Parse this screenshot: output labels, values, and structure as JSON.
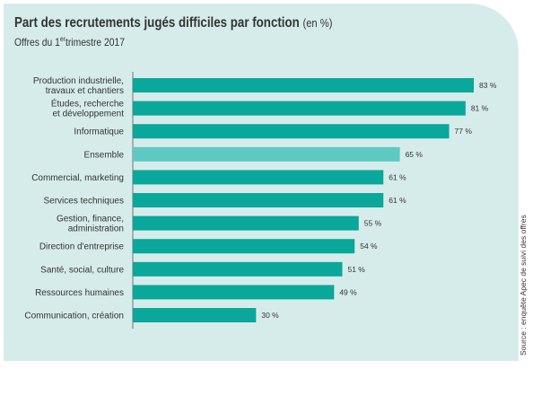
{
  "header": {
    "title": "Part des recrutements jugés difficiles par fonction",
    "title_unit": "(en %)",
    "subtitle_pre": "Offres du 1",
    "subtitle_sup": "er",
    "subtitle_post": "trimestre 2017"
  },
  "source": "Source : enquête Apec de suivi des offres",
  "colors": {
    "panel_bg": "#d6ecea",
    "bar": "#0aa79b",
    "bar_highlight": "#5ec9c1",
    "text": "#333333"
  },
  "chart_data": {
    "type": "bar",
    "orientation": "horizontal",
    "title": "Part des recrutements jugés difficiles par fonction",
    "unit": "%",
    "xlim": [
      0,
      100
    ],
    "grid": false,
    "categories": [
      [
        "Production industrielle,",
        "travaux et chantiers"
      ],
      [
        "Études, recherche",
        "et développement"
      ],
      [
        "Informatique"
      ],
      [
        "Ensemble"
      ],
      [
        "Commercial, marketing"
      ],
      [
        "Services techniques"
      ],
      [
        "Gestion, finance,",
        "administration"
      ],
      [
        "Direction d'entreprise"
      ],
      [
        "Santé, social, culture"
      ],
      [
        "Ressources humaines"
      ],
      [
        "Communication, création"
      ]
    ],
    "values": [
      83,
      81,
      77,
      65,
      61,
      61,
      55,
      54,
      51,
      49,
      30
    ],
    "value_labels": [
      "83 %",
      "81 %",
      "77 %",
      "65 %",
      "61 %",
      "61 %",
      "55 %",
      "54 %",
      "51 %",
      "49 %",
      "30 %"
    ],
    "highlight_index": 3
  }
}
